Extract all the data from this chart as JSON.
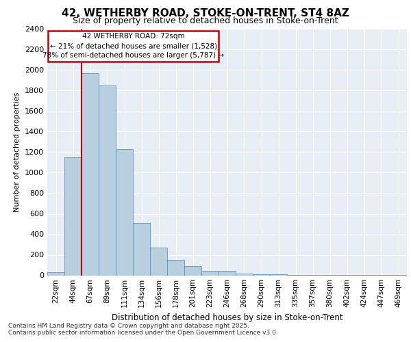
{
  "title1": "42, WETHERBY ROAD, STOKE-ON-TRENT, ST4 8AZ",
  "title2": "Size of property relative to detached houses in Stoke-on-Trent",
  "xlabel": "Distribution of detached houses by size in Stoke-on-Trent",
  "ylabel": "Number of detached properties",
  "bar_labels": [
    "22sqm",
    "44sqm",
    "67sqm",
    "89sqm",
    "111sqm",
    "134sqm",
    "156sqm",
    "178sqm",
    "201sqm",
    "223sqm",
    "246sqm",
    "268sqm",
    "290sqm",
    "313sqm",
    "335sqm",
    "357sqm",
    "380sqm",
    "402sqm",
    "424sqm",
    "447sqm",
    "469sqm"
  ],
  "bar_heights": [
    30,
    1150,
    1970,
    1850,
    1230,
    510,
    270,
    150,
    90,
    45,
    45,
    20,
    10,
    8,
    5,
    3,
    3,
    2,
    2,
    2,
    2
  ],
  "bar_color": "#b8cfe0",
  "bar_edge_color": "#6090b8",
  "vline_bin_index": 2,
  "vline_color": "#cc0000",
  "annotation_text": "42 WETHERBY ROAD: 72sqm\n← 21% of detached houses are smaller (1,528)\n78% of semi-detached houses are larger (5,787) →",
  "annotation_box_color": "#ffffff",
  "annotation_box_edge": "#cc0000",
  "ylim": [
    0,
    2400
  ],
  "yticks": [
    0,
    200,
    400,
    600,
    800,
    1000,
    1200,
    1400,
    1600,
    1800,
    2000,
    2200,
    2400
  ],
  "vline_color_hex": "#cc0000",
  "footnote1": "Contains HM Land Registry data © Crown copyright and database right 2025.",
  "footnote2": "Contains public sector information licensed under the Open Government Licence v3.0.",
  "bg_color": "#ffffff",
  "plot_bg_color": "#e8eef5",
  "grid_color": "#ffffff",
  "title1_fontsize": 11,
  "title2_fontsize": 9
}
